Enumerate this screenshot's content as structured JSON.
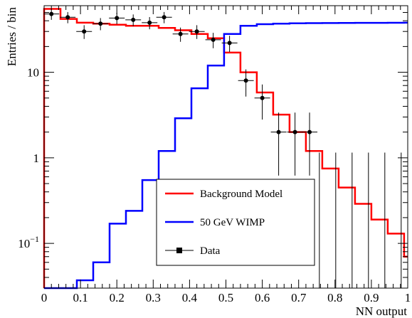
{
  "chart_data": {
    "type": "line",
    "xlabel": "NN output",
    "ylabel": "Entries / bin",
    "xlim": [
      0,
      1
    ],
    "ylim": [
      0.03,
      60
    ],
    "y_scale": "log",
    "grid": false,
    "x_ticks": [
      "0",
      "0.1",
      "0.2",
      "0.3",
      "0.4",
      "0.5",
      "0.6",
      "0.7",
      "0.8",
      "0.9",
      "1"
    ],
    "x_tick_values": [
      0,
      0.1,
      0.2,
      0.3,
      0.4,
      0.5,
      0.6,
      0.7,
      0.8,
      0.9,
      1
    ],
    "y_tick_labels": [
      {
        "value": 0.1,
        "base": "10",
        "exp": "−1"
      },
      {
        "value": 1,
        "base": "1",
        "exp": ""
      },
      {
        "value": 10,
        "base": "10",
        "exp": ""
      }
    ],
    "bin_edges": [
      0,
      0.045,
      0.09,
      0.135,
      0.18,
      0.225,
      0.27,
      0.315,
      0.36,
      0.405,
      0.45,
      0.495,
      0.54,
      0.585,
      0.63,
      0.675,
      0.72,
      0.765,
      0.81,
      0.855,
      0.9,
      0.945,
      0.99,
      1
    ],
    "series": [
      {
        "name": "Background Model",
        "kind": "histogram",
        "color": "#ff0000",
        "values": [
          55,
          42,
          38,
          37,
          36,
          35,
          35,
          33,
          31,
          28,
          25,
          17,
          10,
          5.8,
          3.2,
          2.0,
          1.2,
          0.75,
          0.45,
          0.29,
          0.19,
          0.13,
          0.07
        ]
      },
      {
        "name": "50 GeV WIMP",
        "kind": "histogram",
        "color": "#0000ff",
        "values": [
          0.03,
          0.028,
          0.037,
          0.06,
          0.17,
          0.24,
          0.55,
          1.2,
          2.9,
          6.5,
          12.0,
          28.0,
          35.0,
          36.5,
          37.0,
          37.3,
          37.5,
          37.6,
          37.7,
          37.8,
          37.8,
          37.9,
          38.0
        ]
      },
      {
        "name": "Data",
        "kind": "points",
        "color": "#000000",
        "x": [
          0.02,
          0.065,
          0.11,
          0.155,
          0.2,
          0.245,
          0.29,
          0.33,
          0.375,
          0.42,
          0.465,
          0.51,
          0.555,
          0.6,
          0.645,
          0.69,
          0.73
        ],
        "y": [
          48,
          44,
          30,
          37,
          43,
          41,
          38,
          44,
          28,
          30,
          24,
          22,
          8,
          5,
          2,
          2,
          2
        ],
        "err_lo": [
          7,
          6.6,
          5.5,
          6,
          6.5,
          6.4,
          6.2,
          6.6,
          5.3,
          5.5,
          4.9,
          4.7,
          2.8,
          2.2,
          1.38,
          1.38,
          1.38
        ],
        "err_hi": [
          7,
          6.6,
          5.5,
          6,
          6.5,
          6.4,
          6.2,
          6.6,
          5.3,
          5.5,
          4.9,
          4.7,
          2.8,
          2.2,
          1.38,
          1.38,
          1.38
        ]
      }
    ],
    "zero_count_bins": {
      "x": [
        0.757,
        0.802,
        0.847,
        0.892,
        0.937,
        0.982
      ],
      "upper": [
        1.15,
        1.15,
        1.15,
        1.15,
        1.15,
        1.15
      ]
    },
    "legend": {
      "placement": "center-bottom",
      "entries": [
        {
          "label": "Background Model",
          "color": "#ff0000",
          "marker": "line"
        },
        {
          "label": "50 GeV WIMP",
          "color": "#0000ff",
          "marker": "line"
        },
        {
          "label": "Data",
          "color": "#000000",
          "marker": "point-errorbar"
        }
      ]
    }
  }
}
